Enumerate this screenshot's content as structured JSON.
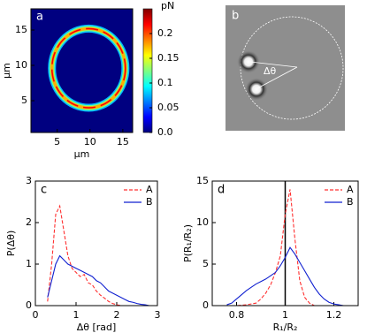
{
  "chart_data": [
    {
      "type": "heatmap",
      "panel_label": "a",
      "xlabel": "μm",
      "ylabel": "μm",
      "xlim": [
        1,
        16.5
      ],
      "ylim": [
        0.5,
        18
      ],
      "xticks": [
        5,
        10,
        15
      ],
      "yticks": [
        5,
        10,
        15
      ],
      "colorbar_label": "pN",
      "clim": [
        0,
        0.25
      ],
      "colorbar_ticks": [
        {
          "value": 0,
          "label": "0.0"
        },
        0.05,
        0.1,
        0.15,
        0.2
      ],
      "ring": {
        "center": [
          9.8,
          9.6
        ],
        "radius": 5.6,
        "peak": 0.22
      }
    },
    {
      "type": "image",
      "panel_label": "b",
      "annotation": "Δθ"
    },
    {
      "type": "line",
      "panel_label": "c",
      "xlabel": "Δθ [rad]",
      "ylabel": "P(Δθ)",
      "xlim": [
        0,
        3
      ],
      "ylim": [
        0,
        3
      ],
      "xticks": [
        0,
        1,
        2,
        3
      ],
      "yticks": [
        0,
        1,
        2,
        3
      ],
      "x": [
        0.3,
        0.4,
        0.5,
        0.6,
        0.7,
        0.8,
        0.9,
        1.0,
        1.1,
        1.2,
        1.3,
        1.4,
        1.5,
        1.6,
        1.7,
        1.8,
        1.9,
        2.0,
        2.1,
        2.2,
        2.3,
        2.4,
        2.5,
        2.6,
        2.7,
        2.8
      ],
      "series": [
        {
          "name": "A",
          "color": "#ff3030",
          "dash": true,
          "values": [
            0.1,
            1.0,
            2.2,
            2.4,
            1.8,
            1.2,
            0.9,
            0.8,
            0.7,
            0.75,
            0.55,
            0.5,
            0.35,
            0.25,
            0.18,
            0.1,
            0.05,
            0.02,
            0,
            0,
            0,
            0,
            0,
            0,
            0,
            0
          ]
        },
        {
          "name": "B",
          "color": "#1020d0",
          "dash": false,
          "values": [
            0.2,
            0.6,
            1.0,
            1.2,
            1.1,
            1.0,
            0.95,
            0.9,
            0.85,
            0.8,
            0.75,
            0.7,
            0.6,
            0.55,
            0.45,
            0.35,
            0.3,
            0.25,
            0.2,
            0.15,
            0.1,
            0.08,
            0.05,
            0.03,
            0.02,
            0
          ]
        }
      ]
    },
    {
      "type": "line",
      "panel_label": "d",
      "xlabel": "R₁/R₂",
      "ylabel": "P(R₁/R₂)",
      "xlim": [
        0.7,
        1.3
      ],
      "ylim": [
        0,
        15
      ],
      "xticks": [
        0.8,
        1,
        1.2
      ],
      "yticks": [
        0,
        5,
        10,
        15
      ],
      "vline": 1,
      "x": [
        0.76,
        0.78,
        0.8,
        0.82,
        0.84,
        0.86,
        0.88,
        0.9,
        0.92,
        0.94,
        0.96,
        0.98,
        1.0,
        1.02,
        1.04,
        1.06,
        1.08,
        1.1,
        1.12,
        1.14,
        1.16,
        1.18,
        1.2,
        1.22,
        1.24
      ],
      "series": [
        {
          "name": "A",
          "color": "#ff3030",
          "dash": true,
          "values": [
            0,
            0,
            0,
            0.05,
            0.1,
            0.2,
            0.3,
            0.8,
            1.5,
            2.5,
            4,
            6,
            11,
            14,
            8,
            3,
            1,
            0.3,
            0,
            0,
            0,
            0,
            0,
            0,
            0
          ]
        },
        {
          "name": "B",
          "color": "#1020d0",
          "dash": false,
          "values": [
            0.1,
            0.3,
            0.8,
            1.3,
            1.8,
            2.2,
            2.6,
            2.9,
            3.2,
            3.6,
            4,
            4.8,
            5.8,
            7,
            6.2,
            5.2,
            4.2,
            3.2,
            2.2,
            1.4,
            0.8,
            0.4,
            0.2,
            0.1,
            0
          ]
        }
      ]
    }
  ]
}
